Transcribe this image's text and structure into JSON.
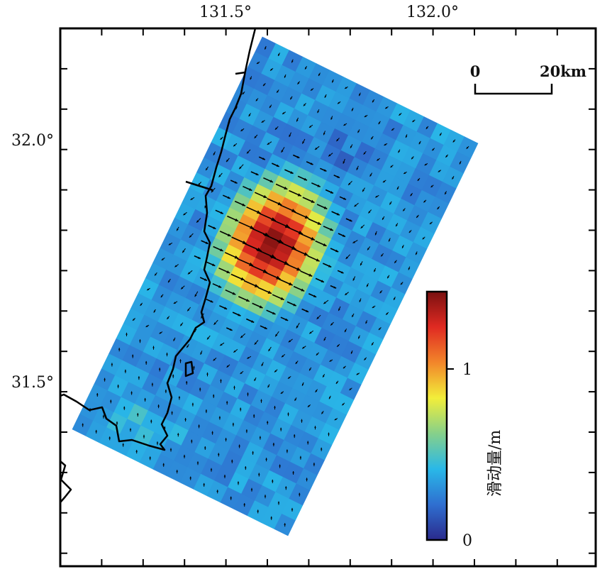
{
  "map": {
    "x_ticks": [
      "131.5°",
      "132.0°"
    ],
    "y_ticks": [
      "32.0°",
      "31.5°"
    ],
    "scale_bar": {
      "start_label": "0",
      "end_label": "20km"
    },
    "colorbar": {
      "title": "滑动量/m",
      "tick_labels": [
        "0",
        "1"
      ],
      "colormap": [
        "#2a2a8c",
        "#2f6fd0",
        "#29b8e8",
        "#86d08a",
        "#f2ee3a",
        "#f2862a",
        "#e02a22",
        "#7a1010"
      ]
    },
    "slip_model": {
      "description_colors": {
        "low": "#2b5fb8",
        "high": "#7a1010"
      }
    }
  }
}
